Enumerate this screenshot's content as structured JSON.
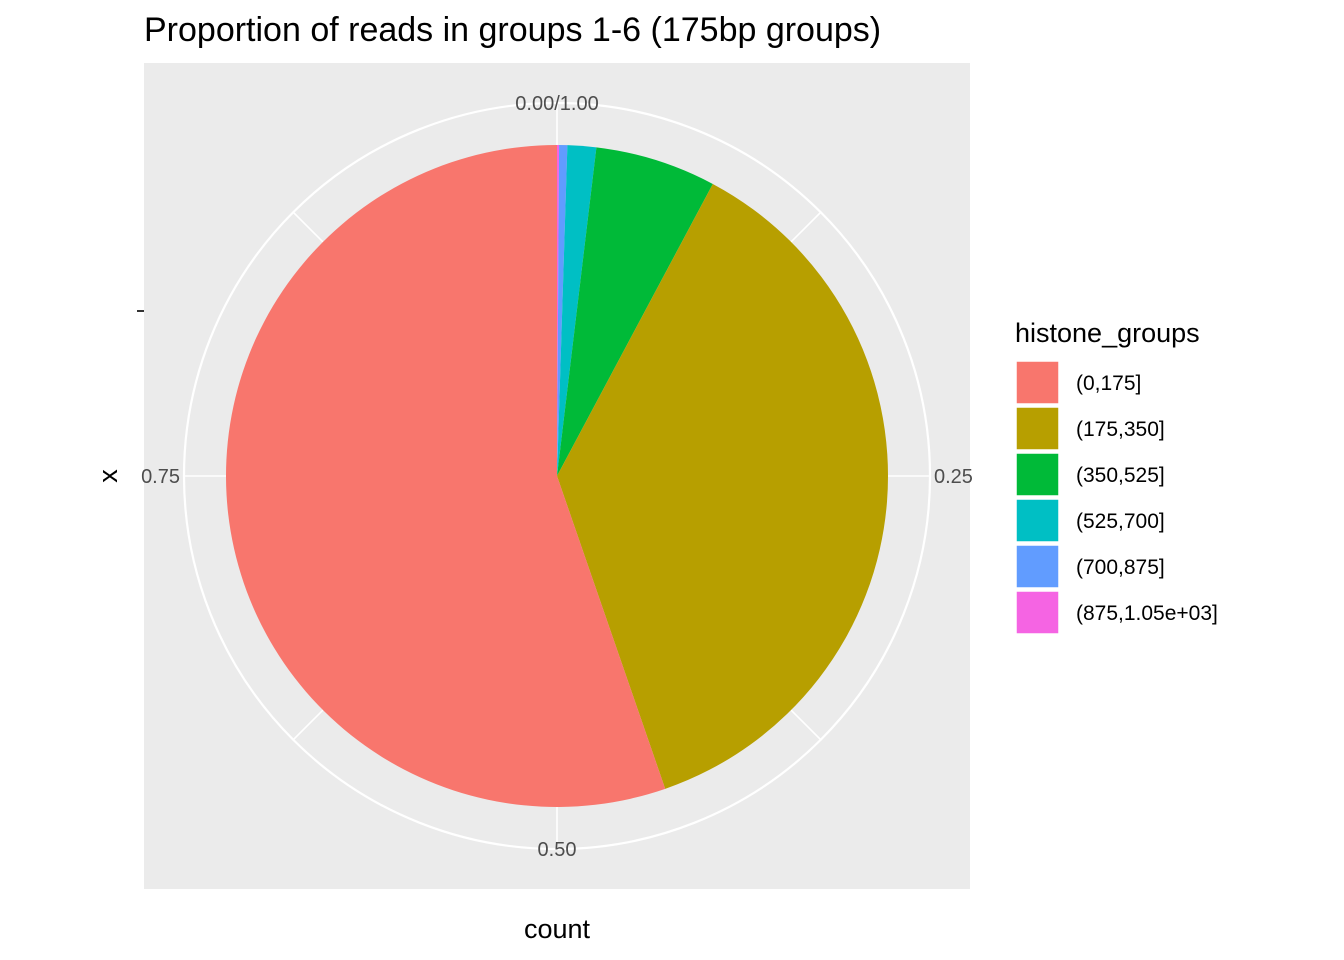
{
  "chart_data": {
    "type": "pie",
    "title": "Proportion of reads in groups 1-6 (175bp groups)",
    "xlabel": "count",
    "ylabel": "x",
    "theta_ticks": [
      {
        "value": 0,
        "label": "0.00/1.00"
      },
      {
        "value": 0.25,
        "label": "0.25"
      },
      {
        "value": 0.5,
        "label": "0.50"
      },
      {
        "value": 0.75,
        "label": "0.75"
      }
    ],
    "legend": {
      "title": "histone_groups",
      "placement": "right"
    },
    "categories": [
      "(0,175]",
      "(175,350]",
      "(350,525]",
      "(525,700]",
      "(700,875]",
      "(875,1.05e+03]"
    ],
    "values": [
      0.553,
      0.369,
      0.059,
      0.014,
      0.004,
      0.001
    ],
    "colors": [
      "#F8766D",
      "#B79F00",
      "#00BA38",
      "#00BFC4",
      "#619CFF",
      "#F564E3"
    ],
    "panel_background": "#EBEBEB",
    "grid": true
  }
}
